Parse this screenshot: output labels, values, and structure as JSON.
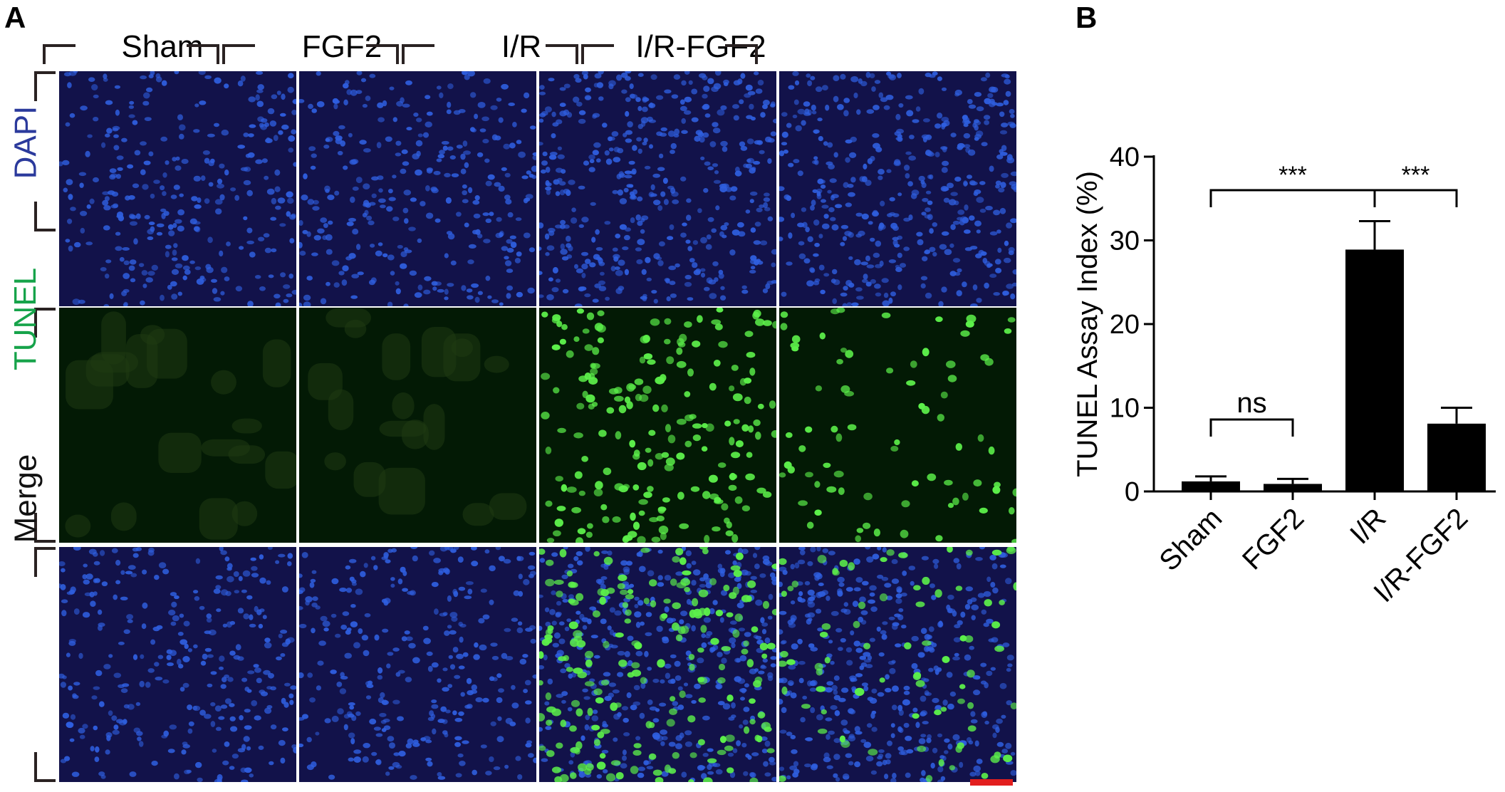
{
  "panel_a": {
    "letter": "A",
    "columns": [
      "Sham",
      "FGF2",
      "I/R",
      "I/R-FGF2"
    ],
    "rows": [
      "DAPI",
      "TUNEL",
      "Merge"
    ],
    "colors": {
      "dapi_label": "#2b3a9c",
      "tunel_label": "#16a34a",
      "merge_label": "#111111",
      "nuclei_blue": "#2f5fe0",
      "tunel_green": "#5cf04a",
      "background_dapi": "#12124a",
      "background_tunel": "#031a05",
      "scale_bar": "#e21e1e"
    },
    "tunel_positive_density": [
      0.0,
      0.0,
      0.9,
      0.35
    ]
  },
  "panel_b": {
    "letter": "B",
    "chart_data": {
      "type": "bar",
      "categories": [
        "Sham",
        "FGF2",
        "I/R",
        "I/R-FGF2"
      ],
      "values": [
        1.2,
        0.9,
        28.9,
        8.1
      ],
      "errors": [
        0.6,
        0.6,
        3.4,
        1.9
      ],
      "ylabel": "TUNEL Assay Index (%)",
      "xlabel": "",
      "ylim": [
        0,
        40
      ],
      "yticks": [
        0,
        10,
        20,
        30,
        40
      ],
      "bar_color": "#000000",
      "annotations": [
        {
          "from": 0,
          "to": 2,
          "label": "***"
        },
        {
          "from": 2,
          "to": 3,
          "label": "***"
        },
        {
          "from": 0,
          "to": 1,
          "label": "ns"
        }
      ]
    }
  }
}
